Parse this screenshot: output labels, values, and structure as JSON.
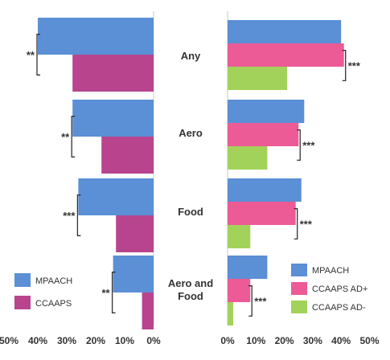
{
  "chart_data": [
    {
      "type": "bar",
      "orientation": "horizontal",
      "direction": "right-to-left",
      "categories": [
        "Any",
        "Aero",
        "Food",
        "Aero and Food"
      ],
      "series": [
        {
          "name": "MPAACH",
          "values": [
            40,
            28,
            26,
            14
          ]
        },
        {
          "name": "CCAAPS",
          "values": [
            28,
            18,
            13,
            4
          ]
        }
      ],
      "significance": [
        "**",
        "**",
        "***",
        "**"
      ],
      "xlim": [
        0,
        50
      ],
      "xticks": [
        "50%",
        "40%",
        "30%",
        "20%",
        "10%",
        "0%"
      ],
      "legend_position": "bottom-left"
    },
    {
      "type": "bar",
      "orientation": "horizontal",
      "direction": "left-to-right",
      "categories": [
        "Any",
        "Aero",
        "Food",
        "Aero and Food"
      ],
      "series": [
        {
          "name": "MPAACH",
          "values": [
            40,
            27,
            26,
            14
          ]
        },
        {
          "name": "CCAAPS AD+",
          "values": [
            41,
            25,
            24,
            8
          ]
        },
        {
          "name": "CCAAPS AD-",
          "values": [
            21,
            14,
            8,
            2
          ]
        }
      ],
      "significance": [
        "***",
        "***",
        "***",
        "***"
      ],
      "xlim": [
        0,
        50
      ],
      "xticks": [
        "0%",
        "10%",
        "20%",
        "30%",
        "40%",
        "50%"
      ],
      "legend_position": "bottom-right"
    }
  ],
  "colors": {
    "mpaach": "#5b8fd6",
    "ccaaps": "#b8448e",
    "ccaaps_ad_plus": "#ec5b96",
    "ccaaps_ad_minus": "#a3d25a",
    "axis": "#c8c8c8",
    "bracket": "#333333"
  }
}
